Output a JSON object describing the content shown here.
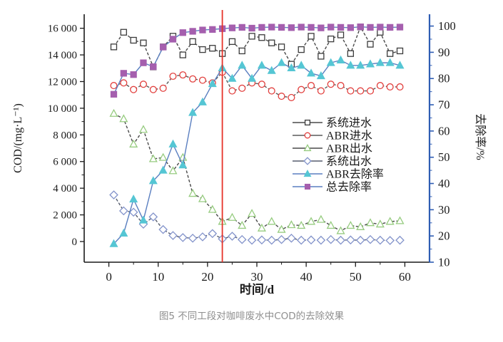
{
  "figure": {
    "caption": "图5 不同工段对咖啡废水中COD的去除效果"
  },
  "chart_data": {
    "type": "line",
    "title": "",
    "x_label": "时间/d",
    "y_left_label": "COD/(mg·L⁻¹)",
    "y_right_label": "去除率/%",
    "x_ticks": [
      0,
      10,
      20,
      30,
      40,
      50,
      60
    ],
    "x_minor_ticks": [
      5,
      15,
      25,
      35,
      45,
      55
    ],
    "y_left_ticks": [
      {
        "value": 0,
        "label": "0"
      },
      {
        "value": 2000,
        "label": "2 000"
      },
      {
        "value": 4000,
        "label": "4 000"
      },
      {
        "value": 6000,
        "label": "6 000"
      },
      {
        "value": 8000,
        "label": "8 000"
      },
      {
        "value": 10000,
        "label": "10 000"
      },
      {
        "value": 12000,
        "label": "12 000"
      },
      {
        "value": 14000,
        "label": "14 000"
      },
      {
        "value": 16000,
        "label": "16 000"
      }
    ],
    "y_right_ticks": [
      10,
      20,
      30,
      40,
      50,
      60,
      70,
      80,
      90,
      100
    ],
    "xlim": [
      -5,
      65
    ],
    "ylim_left": [
      -1550,
      17050
    ],
    "ylim_right": [
      10,
      104.5
    ],
    "grid": false,
    "legend_position": "inside-right-middle",
    "event_line": {
      "x": 23,
      "color": "#e63329"
    },
    "axis_colors": {
      "left": "#1a1a1a",
      "bottom": "#1a1a1a",
      "right": "#2f5db3"
    },
    "x": [
      1,
      3,
      5,
      7,
      9,
      11,
      13,
      15,
      17,
      19,
      21,
      23,
      25,
      27,
      29,
      31,
      33,
      35,
      37,
      39,
      41,
      43,
      45,
      47,
      49,
      51,
      53,
      55,
      57,
      59
    ],
    "series": [
      {
        "name": "系统进水",
        "axis": "left",
        "marker": "square-open",
        "marker_color": "#3b3b3b",
        "line_color": "#4a4a4a",
        "line_dash": "4 2.5",
        "values": [
          14600,
          15700,
          15100,
          14900,
          13100,
          14600,
          15400,
          14000,
          15000,
          14400,
          14500,
          14100,
          15000,
          14300,
          15400,
          15300,
          14900,
          14600,
          13300,
          14400,
          15400,
          13900,
          15200,
          15500,
          14100,
          16100,
          14800,
          15700,
          14100,
          14300
        ]
      },
      {
        "name": "ABR进水",
        "axis": "left",
        "marker": "circle-open",
        "marker_color": "#e2403e",
        "line_color": "#5a5a5a",
        "line_dash": "4 2.5",
        "values": [
          11700,
          11900,
          11400,
          11800,
          11400,
          11500,
          12400,
          12500,
          12200,
          12100,
          11900,
          12700,
          11300,
          11500,
          11900,
          11800,
          11300,
          10900,
          10800,
          11400,
          11700,
          11300,
          11800,
          11700,
          11300,
          11300,
          11300,
          11700,
          11600,
          11600
        ]
      },
      {
        "name": "ABR出水",
        "axis": "left",
        "marker": "triangle-open",
        "marker_color": "#97cc80",
        "line_color": "#4a4a4a",
        "line_dash": "4 2.5",
        "values": [
          9600,
          9200,
          7300,
          8400,
          6200,
          6300,
          5300,
          6300,
          3600,
          3200,
          2400,
          1500,
          1800,
          1200,
          2100,
          1000,
          1500,
          900,
          1250,
          1200,
          1500,
          1650,
          1200,
          800,
          1200,
          1100,
          1400,
          1300,
          1500,
          1550
        ]
      },
      {
        "name": "系统出水",
        "axis": "left",
        "marker": "diamond-open",
        "marker_color": "#8494cb",
        "line_color": "#565d6e",
        "line_dash": "4 2.5",
        "values": [
          3500,
          2300,
          2200,
          1300,
          1850,
          900,
          450,
          300,
          250,
          350,
          600,
          200,
          400,
          150,
          100,
          120,
          100,
          150,
          250,
          100,
          120,
          100,
          150,
          100,
          120,
          100,
          150,
          100,
          80,
          100
        ]
      },
      {
        "name": "ABR去除率",
        "axis": "right",
        "marker": "triangle-filled",
        "marker_color": "#55c6d4",
        "line_color": "#5a7fc0",
        "line_dash": "",
        "values": [
          17,
          21,
          34,
          26,
          41,
          45,
          55,
          47,
          67,
          71,
          78,
          84,
          80,
          85,
          80,
          85,
          83,
          86,
          84,
          85,
          82,
          81,
          86,
          87,
          85,
          85,
          85.5,
          86,
          86,
          85
        ]
      },
      {
        "name": "总去除率",
        "axis": "right",
        "marker": "square-filled",
        "marker_color": "#a55fae",
        "line_color": "#5a7fc0",
        "line_dash": "",
        "values": [
          74,
          82,
          81.5,
          86,
          84.5,
          92,
          95,
          97.5,
          98,
          98.5,
          98.7,
          99,
          99.3,
          99.5,
          99.2,
          99.5,
          99.6,
          99.5,
          99.4,
          99.6,
          99.5,
          99.3,
          99.6,
          99.5,
          99.4,
          99.7,
          99.5,
          99.6,
          99.5,
          99.6
        ]
      }
    ]
  }
}
